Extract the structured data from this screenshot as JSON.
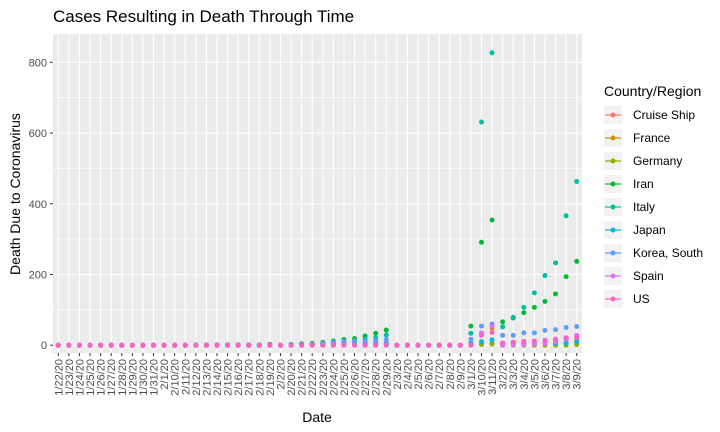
{
  "chart_data": {
    "type": "scatter",
    "title": "Cases Resulting in Death Through Time",
    "xlabel": "Date",
    "ylabel": "Death Due to Coronavirus",
    "ylim": [
      -22,
      880
    ],
    "yticks": [
      0,
      200,
      400,
      600,
      800
    ],
    "grid": true,
    "legend_position": "right",
    "legend_title": "Country/Region",
    "categories": [
      "1/22/20",
      "1/23/20",
      "1/24/20",
      "1/25/20",
      "1/26/20",
      "1/27/20",
      "1/28/20",
      "1/29/20",
      "1/30/20",
      "1/31/20",
      "2/1/20",
      "2/10/20",
      "2/11/20",
      "2/12/20",
      "2/13/20",
      "2/14/20",
      "2/15/20",
      "2/16/20",
      "2/17/20",
      "2/18/20",
      "2/19/20",
      "2/2/20",
      "2/20/20",
      "2/21/20",
      "2/22/20",
      "2/23/20",
      "2/24/20",
      "2/25/20",
      "2/26/20",
      "2/27/20",
      "2/28/20",
      "2/29/20",
      "2/3/20",
      "2/4/20",
      "2/5/20",
      "2/6/20",
      "2/7/20",
      "2/8/20",
      "2/9/20",
      "3/1/20",
      "3/10/20",
      "3/11/20",
      "3/2/20",
      "3/3/20",
      "3/4/20",
      "3/5/20",
      "3/6/20",
      "3/7/20",
      "3/8/20",
      "3/9/20"
    ],
    "series": [
      {
        "name": "Cruise Ship",
        "color": "#F8766D",
        "values": [
          0,
          0,
          0,
          0,
          0,
          0,
          0,
          0,
          0,
          0,
          0,
          0,
          0,
          0,
          0,
          0,
          0,
          0,
          0,
          0,
          2,
          0,
          2,
          2,
          2,
          3,
          3,
          4,
          4,
          6,
          6,
          6,
          0,
          0,
          0,
          0,
          0,
          0,
          0,
          6,
          7,
          7,
          6,
          6,
          6,
          6,
          6,
          6,
          7,
          7
        ]
      },
      {
        "name": "France",
        "color": "#D39200",
        "values": [
          0,
          0,
          0,
          0,
          0,
          0,
          0,
          0,
          0,
          0,
          0,
          0,
          0,
          0,
          0,
          1,
          1,
          1,
          1,
          1,
          1,
          0,
          1,
          1,
          1,
          1,
          1,
          1,
          2,
          2,
          2,
          2,
          0,
          0,
          0,
          0,
          0,
          0,
          0,
          2,
          33,
          48,
          3,
          4,
          4,
          6,
          9,
          11,
          19,
          19
        ]
      },
      {
        "name": "Germany",
        "color": "#93AA00",
        "values": [
          0,
          0,
          0,
          0,
          0,
          0,
          0,
          0,
          0,
          0,
          0,
          0,
          0,
          0,
          0,
          0,
          0,
          0,
          0,
          0,
          0,
          0,
          0,
          0,
          0,
          0,
          0,
          0,
          0,
          0,
          0,
          0,
          0,
          0,
          0,
          0,
          0,
          0,
          0,
          0,
          2,
          3,
          0,
          0,
          0,
          0,
          0,
          0,
          0,
          2
        ]
      },
      {
        "name": "Iran",
        "color": "#00BA38",
        "values": [
          0,
          0,
          0,
          0,
          0,
          0,
          0,
          0,
          0,
          0,
          0,
          0,
          0,
          0,
          0,
          0,
          0,
          0,
          0,
          0,
          2,
          0,
          2,
          4,
          5,
          8,
          12,
          16,
          19,
          26,
          34,
          43,
          0,
          0,
          0,
          0,
          0,
          0,
          0,
          54,
          291,
          354,
          66,
          77,
          92,
          107,
          124,
          145,
          194,
          237
        ]
      },
      {
        "name": "Italy",
        "color": "#00C19F",
        "values": [
          0,
          0,
          0,
          0,
          0,
          0,
          0,
          0,
          0,
          0,
          0,
          0,
          0,
          0,
          0,
          0,
          0,
          0,
          0,
          0,
          0,
          0,
          0,
          1,
          2,
          3,
          7,
          10,
          12,
          17,
          21,
          29,
          0,
          0,
          0,
          0,
          0,
          0,
          0,
          34,
          631,
          827,
          52,
          79,
          107,
          148,
          197,
          233,
          366,
          463
        ]
      },
      {
        "name": "Japan",
        "color": "#00B9E3",
        "values": [
          0,
          0,
          0,
          0,
          0,
          0,
          0,
          0,
          0,
          0,
          0,
          0,
          0,
          1,
          1,
          1,
          1,
          1,
          1,
          1,
          1,
          0,
          1,
          1,
          1,
          1,
          1,
          1,
          2,
          4,
          4,
          5,
          0,
          0,
          0,
          0,
          0,
          0,
          0,
          6,
          10,
          15,
          6,
          6,
          6,
          6,
          6,
          6,
          6,
          10
        ]
      },
      {
        "name": "Korea, South",
        "color": "#619CFF",
        "values": [
          0,
          0,
          0,
          0,
          0,
          0,
          0,
          0,
          0,
          0,
          0,
          0,
          0,
          0,
          0,
          0,
          0,
          0,
          0,
          0,
          0,
          0,
          1,
          2,
          2,
          5,
          8,
          11,
          12,
          13,
          13,
          16,
          0,
          0,
          0,
          0,
          0,
          0,
          0,
          17,
          54,
          60,
          28,
          28,
          35,
          35,
          42,
          44,
          50,
          53
        ]
      },
      {
        "name": "Spain",
        "color": "#DB72FB",
        "values": [
          0,
          0,
          0,
          0,
          0,
          0,
          0,
          0,
          0,
          0,
          0,
          0,
          0,
          0,
          0,
          0,
          0,
          0,
          0,
          0,
          0,
          0,
          0,
          0,
          0,
          0,
          0,
          0,
          0,
          0,
          0,
          0,
          0,
          0,
          0,
          0,
          0,
          0,
          0,
          0,
          35,
          54,
          0,
          1,
          2,
          3,
          5,
          10,
          17,
          28
        ]
      },
      {
        "name": "US",
        "color": "#FF61C3",
        "values": [
          0,
          0,
          0,
          0,
          0,
          0,
          0,
          0,
          0,
          0,
          0,
          0,
          0,
          0,
          0,
          0,
          0,
          0,
          0,
          0,
          0,
          0,
          0,
          0,
          0,
          0,
          0,
          0,
          0,
          0,
          0,
          1,
          0,
          0,
          0,
          0,
          0,
          0,
          0,
          1,
          28,
          36,
          6,
          9,
          11,
          12,
          14,
          17,
          21,
          22
        ]
      }
    ]
  }
}
